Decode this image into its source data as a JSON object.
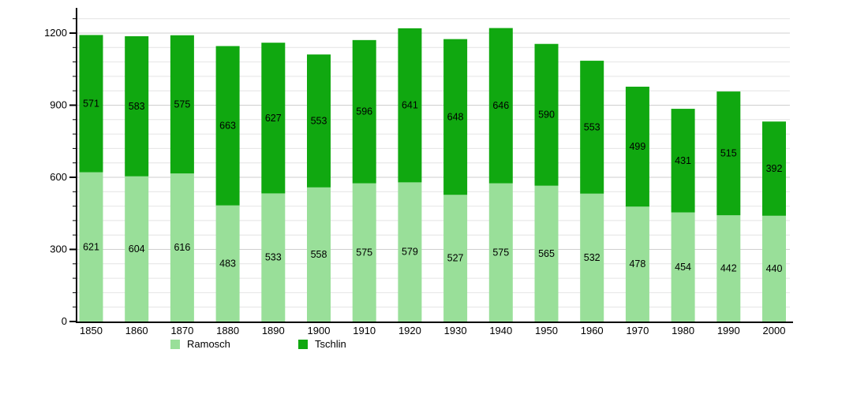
{
  "chart_data": {
    "type": "bar",
    "stacked": true,
    "title": "",
    "xlabel": "",
    "ylabel": "",
    "categories": [
      "1850",
      "1860",
      "1870",
      "1880",
      "1890",
      "1900",
      "1910",
      "1920",
      "1930",
      "1940",
      "1950",
      "1960",
      "1970",
      "1980",
      "1990",
      "2000"
    ],
    "series": [
      {
        "name": "Ramosch",
        "color": "#99DF99",
        "values": [
          621,
          604,
          616,
          483,
          533,
          558,
          575,
          579,
          527,
          575,
          565,
          532,
          478,
          454,
          442,
          440
        ]
      },
      {
        "name": "Tschlin",
        "color": "#10A810",
        "values": [
          571,
          583,
          575,
          663,
          627,
          553,
          596,
          641,
          648,
          646,
          590,
          553,
          499,
          431,
          515,
          392
        ]
      }
    ],
    "ylim": [
      0,
      1260
    ],
    "y_major_ticks": [
      0,
      300,
      600,
      900,
      1200
    ],
    "y_minor_step": 60,
    "grid": true,
    "legend_position": "bottom",
    "data_labels": true
  },
  "legend": {
    "items": [
      {
        "label": "Ramosch",
        "color": "#99DF99"
      },
      {
        "label": "Tschlin",
        "color": "#10A810"
      }
    ]
  },
  "colors": {
    "background": "#ffffff",
    "axis": "#000000",
    "grid_minor": "#e4e4e4",
    "grid_major": "#cfcfcf",
    "label_text": "#000000"
  }
}
